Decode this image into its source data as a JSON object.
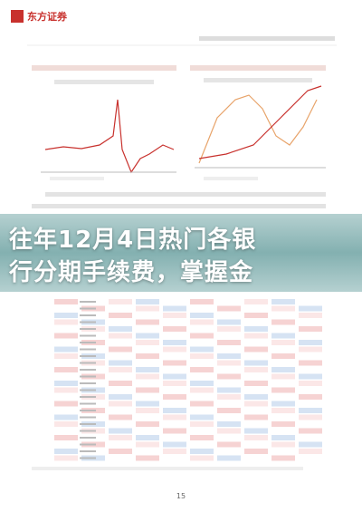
{
  "header": {
    "brand": "东方证券"
  },
  "overlay": {
    "title_lines": [
      "往年12月4日热门各银",
      "行分期手续费，掌握金"
    ]
  },
  "footer": {
    "page_number": "15"
  }
}
